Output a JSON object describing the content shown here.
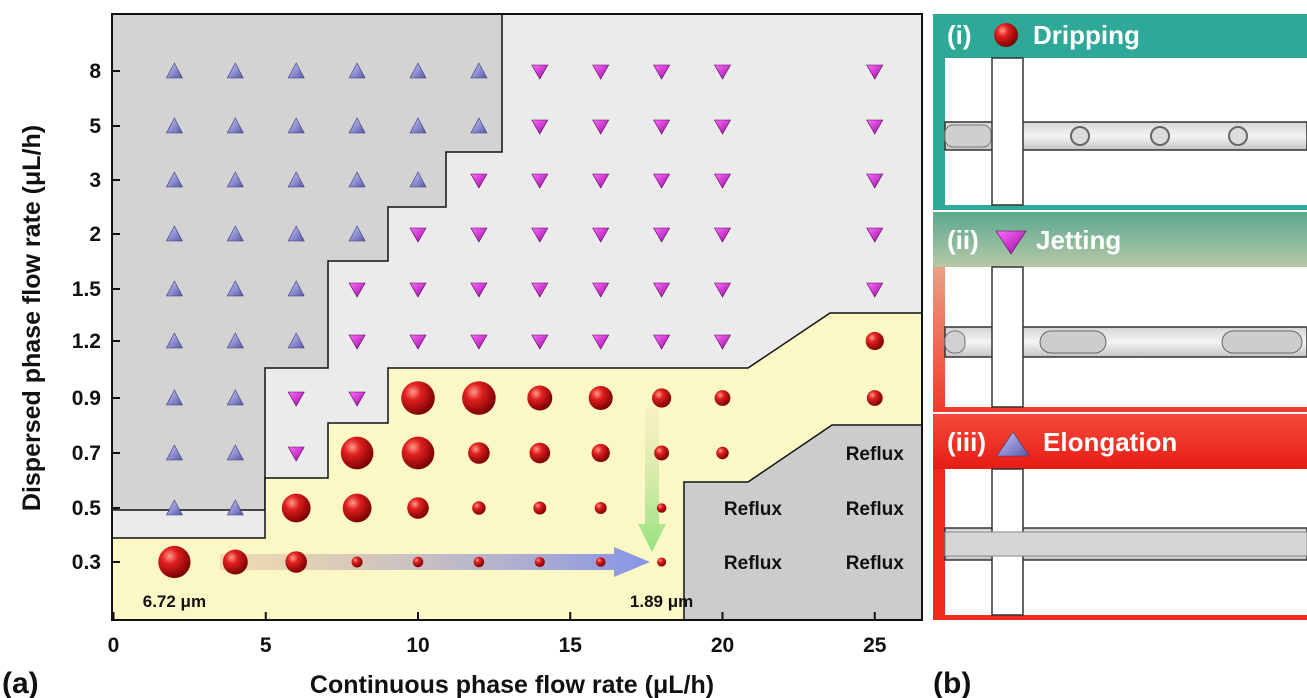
{
  "panel_labels": {
    "a": "(a)",
    "b": "(b)"
  },
  "chart_data": {
    "type": "scatter",
    "title": "",
    "xlabel": "Continuous phase flow rate (μL/h)",
    "ylabel": "Dispersed phase flow rate (μL/h)",
    "x_ticks": [
      "0",
      "5",
      "10",
      "15",
      "20",
      "25"
    ],
    "y_ticks": [
      "0.3",
      "0.5",
      "0.7",
      "0.9",
      "1.2",
      "1.5",
      "2",
      "3",
      "5",
      "8"
    ],
    "xlim": [
      0,
      27
    ],
    "y_axis_note": "categorical (non-linear) flow-rate levels",
    "grid": false,
    "regime_colors": {
      "elongation": "#d2d2d2",
      "jetting": "#ebebeb",
      "dripping": "#fbf8c6",
      "reflux": "#cccccc"
    },
    "series": [
      {
        "name": "Elongation",
        "marker": "triangle-up",
        "color": "#8c8ce0",
        "points": [
          [
            2,
            0.5
          ],
          [
            4,
            0.5
          ],
          [
            2,
            0.7
          ],
          [
            4,
            0.7
          ],
          [
            2,
            0.9
          ],
          [
            4,
            0.9
          ],
          [
            2,
            1.2
          ],
          [
            4,
            1.2
          ],
          [
            6,
            1.2
          ],
          [
            2,
            1.5
          ],
          [
            4,
            1.5
          ],
          [
            6,
            1.5
          ],
          [
            2,
            2
          ],
          [
            4,
            2
          ],
          [
            6,
            2
          ],
          [
            8,
            2
          ],
          [
            2,
            3
          ],
          [
            4,
            3
          ],
          [
            6,
            3
          ],
          [
            8,
            3
          ],
          [
            10,
            3
          ],
          [
            2,
            5
          ],
          [
            4,
            5
          ],
          [
            6,
            5
          ],
          [
            8,
            5
          ],
          [
            10,
            5
          ],
          [
            12,
            5
          ],
          [
            2,
            8
          ],
          [
            4,
            8
          ],
          [
            6,
            8
          ],
          [
            8,
            8
          ],
          [
            10,
            8
          ],
          [
            12,
            8
          ]
        ]
      },
      {
        "name": "Jetting",
        "marker": "triangle-down",
        "color": "#d21ed7",
        "points": [
          [
            6,
            0.7
          ],
          [
            6,
            0.9
          ],
          [
            8,
            0.9
          ],
          [
            8,
            1.2
          ],
          [
            10,
            1.2
          ],
          [
            12,
            1.2
          ],
          [
            14,
            1.2
          ],
          [
            16,
            1.2
          ],
          [
            18,
            1.2
          ],
          [
            20,
            1.2
          ],
          [
            8,
            1.5
          ],
          [
            10,
            1.5
          ],
          [
            12,
            1.5
          ],
          [
            14,
            1.5
          ],
          [
            16,
            1.5
          ],
          [
            18,
            1.5
          ],
          [
            20,
            1.5
          ],
          [
            25,
            1.5
          ],
          [
            10,
            2
          ],
          [
            12,
            2
          ],
          [
            14,
            2
          ],
          [
            16,
            2
          ],
          [
            18,
            2
          ],
          [
            20,
            2
          ],
          [
            25,
            2
          ],
          [
            12,
            3
          ],
          [
            14,
            3
          ],
          [
            16,
            3
          ],
          [
            18,
            3
          ],
          [
            20,
            3
          ],
          [
            25,
            3
          ],
          [
            14,
            5
          ],
          [
            16,
            5
          ],
          [
            18,
            5
          ],
          [
            20,
            5
          ],
          [
            25,
            5
          ],
          [
            14,
            8
          ],
          [
            16,
            8
          ],
          [
            18,
            8
          ],
          [
            20,
            8
          ],
          [
            25,
            8
          ]
        ]
      },
      {
        "name": "Dripping",
        "marker": "sphere",
        "color": "#d41a1a",
        "size_unit": "μm",
        "points": [
          {
            "x": 2,
            "y": 0.3,
            "d": 6.72
          },
          {
            "x": 4,
            "y": 0.3,
            "d": 5.2
          },
          {
            "x": 6,
            "y": 0.3,
            "d": 4.5
          },
          {
            "x": 8,
            "y": 0.3,
            "d": 2.3
          },
          {
            "x": 10,
            "y": 0.3,
            "d": 2.2
          },
          {
            "x": 12,
            "y": 0.3,
            "d": 2.2
          },
          {
            "x": 14,
            "y": 0.3,
            "d": 2.1
          },
          {
            "x": 16,
            "y": 0.3,
            "d": 2.0
          },
          {
            "x": 18,
            "y": 0.3,
            "d": 1.89
          },
          {
            "x": 6,
            "y": 0.5,
            "d": 6.0
          },
          {
            "x": 8,
            "y": 0.5,
            "d": 6.0
          },
          {
            "x": 10,
            "y": 0.5,
            "d": 4.5
          },
          {
            "x": 12,
            "y": 0.5,
            "d": 2.8
          },
          {
            "x": 14,
            "y": 0.5,
            "d": 2.7
          },
          {
            "x": 16,
            "y": 0.5,
            "d": 2.5
          },
          {
            "x": 18,
            "y": 0.5,
            "d": 2.0
          },
          {
            "x": 8,
            "y": 0.7,
            "d": 6.8
          },
          {
            "x": 10,
            "y": 0.7,
            "d": 6.8
          },
          {
            "x": 12,
            "y": 0.7,
            "d": 4.5
          },
          {
            "x": 14,
            "y": 0.7,
            "d": 4.3
          },
          {
            "x": 16,
            "y": 0.7,
            "d": 3.8
          },
          {
            "x": 18,
            "y": 0.7,
            "d": 3.1
          },
          {
            "x": 20,
            "y": 0.7,
            "d": 2.6
          },
          {
            "x": 10,
            "y": 0.9,
            "d": 7.0
          },
          {
            "x": 12,
            "y": 0.9,
            "d": 7.0
          },
          {
            "x": 14,
            "y": 0.9,
            "d": 5.2
          },
          {
            "x": 16,
            "y": 0.9,
            "d": 5.0
          },
          {
            "x": 18,
            "y": 0.9,
            "d": 4.0
          },
          {
            "x": 20,
            "y": 0.9,
            "d": 3.3
          },
          {
            "x": 25,
            "y": 0.9,
            "d": 3.3
          },
          {
            "x": 25,
            "y": 1.2,
            "d": 3.8
          }
        ]
      }
    ],
    "reflux_labels": [
      {
        "text": "Reflux",
        "x": 21,
        "y": 0.5
      },
      {
        "text": "Reflux",
        "x": 21,
        "y": 0.3
      },
      {
        "text": "Reflux",
        "x": 25,
        "y": 0.7
      },
      {
        "text": "Reflux",
        "x": 25,
        "y": 0.5
      },
      {
        "text": "Reflux",
        "x": 25,
        "y": 0.3
      }
    ],
    "annotations": [
      {
        "text": "6.72 μm",
        "x": 2,
        "y": 0.3,
        "anchor": "below"
      },
      {
        "text": "1.89 μm",
        "x": 18,
        "y": 0.3,
        "anchor": "below"
      }
    ],
    "arrows": [
      {
        "from": [
          2.5,
          0.3
        ],
        "to": [
          18,
          0.3
        ],
        "color": "#7f8fe8"
      },
      {
        "from": [
          18,
          0.9
        ],
        "to": [
          18,
          0.3
        ],
        "color": "#8ee07a"
      }
    ]
  },
  "panel_b": {
    "sections": [
      {
        "label": "(i)",
        "title": "Dripping",
        "icon": "red-sphere-icon",
        "header_color": "#2ea998"
      },
      {
        "label": "(ii)",
        "title": "Jetting",
        "icon": "magenta-triangle-down-icon",
        "header_color": "#7fb49a"
      },
      {
        "label": "(iii)",
        "title": "Elongation",
        "icon": "blue-triangle-up-icon",
        "header_color": "#ef2a1f"
      }
    ]
  }
}
